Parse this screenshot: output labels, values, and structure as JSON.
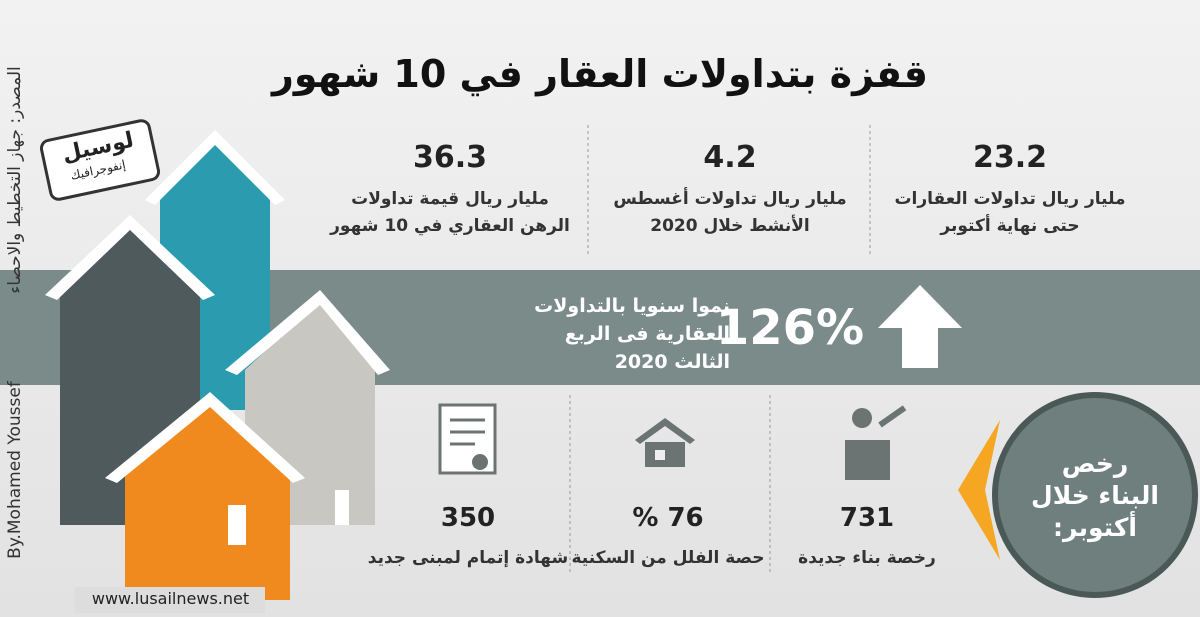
{
  "header": {
    "title": "قفزة بتداولات العقار في 10 شهور"
  },
  "source": "المصدر: جهاز التخطيط والاحصاء",
  "byline": "By.Mohamed Youssef",
  "logo": {
    "name": "لوسيل",
    "sub": "إنفوجرافيك"
  },
  "stats": [
    {
      "value": "23.2",
      "lines": [
        "مليار ريال تداولات العقارات",
        "حتى نهاية أكتوبر"
      ]
    },
    {
      "value": "4.2",
      "lines": [
        "مليار ريال تداولات أغسطس",
        "الأنشط  خلال 2020"
      ]
    },
    {
      "value": "36.3",
      "lines": [
        "مليار ريال قيمة تداولات",
        "الرهن العقاري في 10 شهور"
      ]
    }
  ],
  "growth": {
    "value": "126%",
    "lines": [
      "نموا سنويا بالتداولات",
      "العقارية فى الربع",
      "الثالث 2020"
    ]
  },
  "permits": {
    "heading": [
      "رخص",
      "البناء خلال",
      "أكتوبر:"
    ],
    "items": [
      {
        "value": "731",
        "label": "رخصة بناء جديدة"
      },
      {
        "value": "76 %",
        "label": "حصة الفلل من السكنية"
      },
      {
        "value": "350",
        "label": "شهادة إتمام لمبنى جديد"
      }
    ]
  },
  "website": "www.lusailnews.net"
}
